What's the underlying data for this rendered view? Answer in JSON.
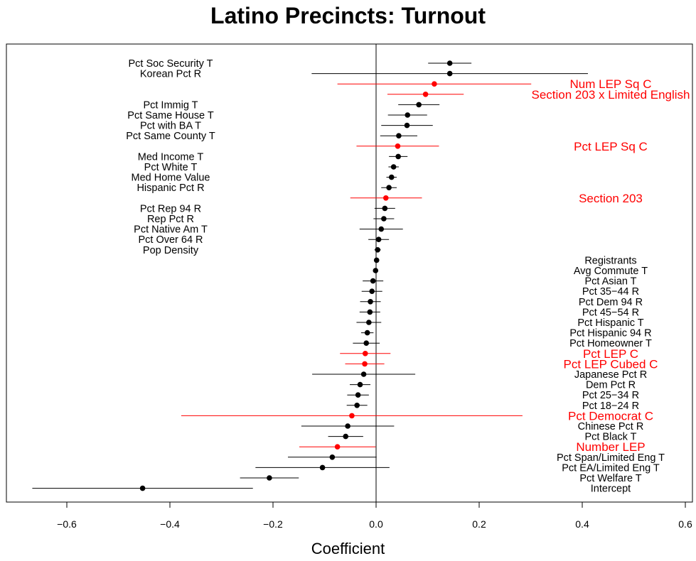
{
  "chart_data": {
    "type": "scatter",
    "subtype": "coefficient-plot",
    "title": "Latino Precincts: Turnout",
    "xlabel": "Coefficient",
    "ylabel": "",
    "xlim": [
      -0.7,
      0.6
    ],
    "xticks": [
      -0.6,
      -0.4,
      -0.2,
      0.0,
      0.2,
      0.4,
      0.6
    ],
    "xtick_labels": [
      "−0.6",
      "−0.4",
      "−0.2",
      "0.0",
      "0.2",
      "0.4",
      "0.6"
    ],
    "zero_line": 0,
    "grid": false,
    "colors": {
      "default": "#000000",
      "highlight": "#ff0000"
    },
    "points": [
      {
        "label": "Pct Soc Security T",
        "estimate": 0.143,
        "low": 0.101,
        "high": 0.185,
        "color": "black",
        "label_side": "left"
      },
      {
        "label": "Korean Pct R",
        "estimate": 0.143,
        "low": -0.125,
        "high": 0.411,
        "color": "black",
        "label_side": "left"
      },
      {
        "label": "Num LEP Sq C",
        "estimate": 0.113,
        "low": -0.075,
        "high": 0.301,
        "color": "red",
        "label_side": "right"
      },
      {
        "label": "Section 203 x Limited English",
        "estimate": 0.096,
        "low": 0.022,
        "high": 0.17,
        "color": "red",
        "label_side": "right"
      },
      {
        "label": "Pct Immig T",
        "estimate": 0.083,
        "low": 0.043,
        "high": 0.123,
        "color": "black",
        "label_side": "left"
      },
      {
        "label": "Pct Same House T",
        "estimate": 0.061,
        "low": 0.023,
        "high": 0.099,
        "color": "black",
        "label_side": "left"
      },
      {
        "label": "Pct with BA T",
        "estimate": 0.06,
        "low": 0.01,
        "high": 0.11,
        "color": "black",
        "label_side": "left"
      },
      {
        "label": "Pct Same County T",
        "estimate": 0.044,
        "low": 0.008,
        "high": 0.08,
        "color": "black",
        "label_side": "left"
      },
      {
        "label": "Pct LEP Sq C",
        "estimate": 0.042,
        "low": -0.038,
        "high": 0.122,
        "color": "red",
        "label_side": "right"
      },
      {
        "label": "Med Income T",
        "estimate": 0.043,
        "low": 0.025,
        "high": 0.061,
        "color": "black",
        "label_side": "left"
      },
      {
        "label": "Pct White T",
        "estimate": 0.034,
        "low": 0.024,
        "high": 0.044,
        "color": "black",
        "label_side": "left"
      },
      {
        "label": "Med Home Value",
        "estimate": 0.03,
        "low": 0.02,
        "high": 0.04,
        "color": "black",
        "label_side": "left"
      },
      {
        "label": "Hispanic Pct R",
        "estimate": 0.025,
        "low": 0.01,
        "high": 0.04,
        "color": "black",
        "label_side": "left"
      },
      {
        "label": "Section 203",
        "estimate": 0.019,
        "low": -0.05,
        "high": 0.089,
        "color": "red",
        "label_side": "right"
      },
      {
        "label": "Pct Rep 94 R",
        "estimate": 0.017,
        "low": -0.003,
        "high": 0.037,
        "color": "black",
        "label_side": "left"
      },
      {
        "label": "Rep Pct R",
        "estimate": 0.015,
        "low": -0.005,
        "high": 0.035,
        "color": "black",
        "label_side": "left"
      },
      {
        "label": "Pct Native Am T",
        "estimate": 0.01,
        "low": -0.032,
        "high": 0.052,
        "color": "black",
        "label_side": "left"
      },
      {
        "label": "Pct Over 64 R",
        "estimate": 0.005,
        "low": -0.015,
        "high": 0.025,
        "color": "black",
        "label_side": "left"
      },
      {
        "label": "Pop Density",
        "estimate": 0.003,
        "low": -0.003,
        "high": 0.009,
        "color": "black",
        "label_side": "left"
      },
      {
        "label": "Registrants",
        "estimate": 0.001,
        "low": -0.002,
        "high": 0.004,
        "color": "black",
        "label_side": "right"
      },
      {
        "label": "Avg Commute T",
        "estimate": -0.001,
        "low": -0.004,
        "high": 0.002,
        "color": "black",
        "label_side": "right"
      },
      {
        "label": "Pct Asian T",
        "estimate": -0.006,
        "low": -0.026,
        "high": 0.014,
        "color": "black",
        "label_side": "right"
      },
      {
        "label": "Pct 35−44 R",
        "estimate": -0.008,
        "low": -0.028,
        "high": 0.012,
        "color": "black",
        "label_side": "right"
      },
      {
        "label": "Pct Dem 94 R",
        "estimate": -0.011,
        "low": -0.031,
        "high": 0.009,
        "color": "black",
        "label_side": "right"
      },
      {
        "label": "Pct 45−54 R",
        "estimate": -0.012,
        "low": -0.032,
        "high": 0.008,
        "color": "black",
        "label_side": "right"
      },
      {
        "label": "Pct Hispanic T",
        "estimate": -0.014,
        "low": -0.038,
        "high": 0.01,
        "color": "black",
        "label_side": "right"
      },
      {
        "label": "Pct Hispanic 94 R",
        "estimate": -0.017,
        "low": -0.029,
        "high": -0.005,
        "color": "black",
        "label_side": "right"
      },
      {
        "label": "Pct Homeowner T",
        "estimate": -0.019,
        "low": -0.045,
        "high": 0.007,
        "color": "black",
        "label_side": "right"
      },
      {
        "label": "Pct LEP C",
        "estimate": -0.021,
        "low": -0.07,
        "high": 0.028,
        "color": "red",
        "label_side": "right"
      },
      {
        "label": "Pct LEP Cubed C",
        "estimate": -0.022,
        "low": -0.06,
        "high": 0.016,
        "color": "red",
        "label_side": "right"
      },
      {
        "label": "Japanese Pct R",
        "estimate": -0.024,
        "low": -0.124,
        "high": 0.076,
        "color": "black",
        "label_side": "right"
      },
      {
        "label": "Dem Pct R",
        "estimate": -0.031,
        "low": -0.051,
        "high": -0.011,
        "color": "black",
        "label_side": "right"
      },
      {
        "label": "Pct 25−34 R",
        "estimate": -0.035,
        "low": -0.056,
        "high": -0.014,
        "color": "black",
        "label_side": "right"
      },
      {
        "label": "Pct 18−24 R",
        "estimate": -0.037,
        "low": -0.057,
        "high": -0.017,
        "color": "black",
        "label_side": "right"
      },
      {
        "label": "Pct Democrat C",
        "estimate": -0.047,
        "low": -0.378,
        "high": 0.284,
        "color": "red",
        "label_side": "right"
      },
      {
        "label": "Chinese Pct R",
        "estimate": -0.055,
        "low": -0.145,
        "high": 0.035,
        "color": "black",
        "label_side": "right"
      },
      {
        "label": "Pct Black T",
        "estimate": -0.059,
        "low": -0.093,
        "high": -0.025,
        "color": "black",
        "label_side": "right"
      },
      {
        "label": "Number LEP",
        "estimate": -0.075,
        "low": -0.149,
        "high": -0.001,
        "color": "red",
        "label_side": "right"
      },
      {
        "label": "Pct Span/Limited Eng T",
        "estimate": -0.085,
        "low": -0.171,
        "high": 0.001,
        "color": "black",
        "label_side": "right"
      },
      {
        "label": "Pct EA/Limited Eng T",
        "estimate": -0.104,
        "low": -0.234,
        "high": 0.026,
        "color": "black",
        "label_side": "right"
      },
      {
        "label": "Pct Welfare T",
        "estimate": -0.207,
        "low": -0.264,
        "high": -0.15,
        "color": "black",
        "label_side": "right"
      },
      {
        "label": "Intercept",
        "estimate": -0.453,
        "low": -0.667,
        "high": -0.239,
        "color": "black",
        "label_side": "right"
      }
    ]
  }
}
